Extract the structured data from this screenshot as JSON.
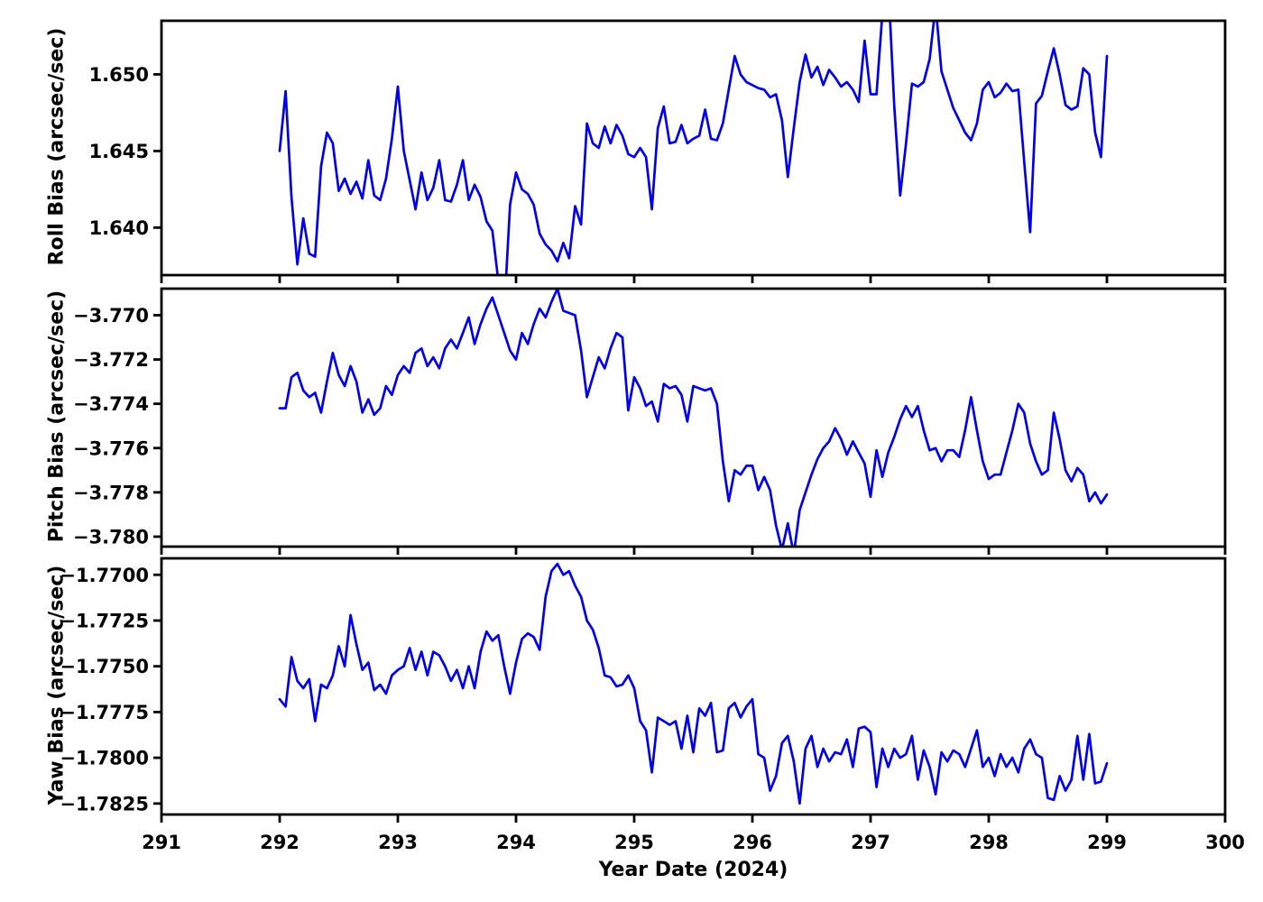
{
  "figure": {
    "background": "#ffffff",
    "axis_color": "#000000",
    "line_color": "#0000ee"
  },
  "xaxis": {
    "label": "Year Date (2024)",
    "xlim": [
      291,
      300
    ],
    "ticks": [
      291,
      292,
      293,
      294,
      295,
      296,
      297,
      298,
      299,
      300
    ],
    "tick_labels": [
      "291",
      "292",
      "293",
      "294",
      "295",
      "296",
      "297",
      "298",
      "299",
      "300"
    ]
  },
  "panels": [
    {
      "name": "roll",
      "ylabel": "Roll Bias (arcsec/sec)",
      "ylim": [
        1.6369,
        1.6535
      ],
      "ytick_values": [
        1.64,
        1.645,
        1.65
      ],
      "ytick_labels": [
        "1.640",
        "1.645",
        "1.650"
      ]
    },
    {
      "name": "pitch",
      "ylabel": "Pitch Bias (arcsec/sec)",
      "ylim": [
        -3.78045,
        -3.7688
      ],
      "ytick_values": [
        -3.78,
        -3.778,
        -3.776,
        -3.774,
        -3.772,
        -3.77
      ],
      "ytick_labels": [
        "−3.780",
        "−3.778",
        "−3.776",
        "−3.774",
        "−3.772",
        "−3.770"
      ]
    },
    {
      "name": "yaw",
      "ylabel": "Yaw Bias (arcsec/sec)",
      "ylim": [
        -1.7831,
        -1.7691
      ],
      "ytick_values": [
        -1.7825,
        -1.78,
        -1.7775,
        -1.775,
        -1.7725,
        -1.77
      ],
      "ytick_labels": [
        "−1.7825",
        "−1.7800",
        "−1.7775",
        "−1.7750",
        "−1.7725",
        "−1.7700"
      ]
    }
  ],
  "chart_data": {
    "type": "line",
    "xlabel": "Year Date (2024)",
    "legend": "none",
    "grid": false,
    "line_color": "#0000ee",
    "x": [
      292.0,
      292.05,
      292.1,
      292.15,
      292.2,
      292.25,
      292.3,
      292.35,
      292.4,
      292.45,
      292.5,
      292.55,
      292.6,
      292.65,
      292.7,
      292.75,
      292.8,
      292.85,
      292.9,
      292.95,
      293.0,
      293.05,
      293.1,
      293.15,
      293.2,
      293.25,
      293.3,
      293.35,
      293.4,
      293.45,
      293.5,
      293.55,
      293.6,
      293.65,
      293.7,
      293.75,
      293.8,
      293.85,
      293.9,
      293.95,
      294.0,
      294.05,
      294.1,
      294.15,
      294.2,
      294.25,
      294.3,
      294.35,
      294.4,
      294.45,
      294.5,
      294.55,
      294.6,
      294.65,
      294.7,
      294.75,
      294.8,
      294.85,
      294.9,
      294.95,
      295.0,
      295.05,
      295.1,
      295.15,
      295.2,
      295.25,
      295.3,
      295.35,
      295.4,
      295.45,
      295.5,
      295.55,
      295.6,
      295.65,
      295.7,
      295.75,
      295.8,
      295.85,
      295.9,
      295.95,
      296.0,
      296.05,
      296.1,
      296.15,
      296.2,
      296.25,
      296.3,
      296.35,
      296.4,
      296.45,
      296.5,
      296.55,
      296.6,
      296.65,
      296.7,
      296.75,
      296.8,
      296.85,
      296.9,
      296.95,
      297.0,
      297.05,
      297.1,
      297.15,
      297.2,
      297.25,
      297.3,
      297.35,
      297.4,
      297.45,
      297.5,
      297.55,
      297.6,
      297.65,
      297.7,
      297.75,
      297.8,
      297.85,
      297.9,
      297.95,
      298.0,
      298.05,
      298.1,
      298.15,
      298.2,
      298.25,
      298.3,
      298.35,
      298.4,
      298.45,
      298.5,
      298.55,
      298.6,
      298.65,
      298.7,
      298.75,
      298.8,
      298.85,
      298.9,
      298.95,
      299.0
    ],
    "series": [
      {
        "name": "Roll Bias (arcsec/sec)",
        "values": [
          1.645,
          1.6489,
          1.642,
          1.6376,
          1.6406,
          1.6383,
          1.6381,
          1.644,
          1.6462,
          1.6455,
          1.6424,
          1.6432,
          1.6422,
          1.643,
          1.6419,
          1.6444,
          1.6421,
          1.6418,
          1.6432,
          1.6458,
          1.6492,
          1.645,
          1.6431,
          1.6412,
          1.6436,
          1.6418,
          1.6426,
          1.6444,
          1.6418,
          1.6417,
          1.6428,
          1.6444,
          1.6418,
          1.6428,
          1.642,
          1.6404,
          1.6398,
          1.6365,
          1.6345,
          1.6415,
          1.6436,
          1.6425,
          1.6422,
          1.6415,
          1.6396,
          1.6389,
          1.6385,
          1.6378,
          1.639,
          1.638,
          1.6414,
          1.6402,
          1.6468,
          1.6455,
          1.6452,
          1.6466,
          1.6455,
          1.6467,
          1.646,
          1.6448,
          1.6446,
          1.6452,
          1.6446,
          1.6412,
          1.6465,
          1.6479,
          1.6455,
          1.6456,
          1.6467,
          1.6455,
          1.6458,
          1.646,
          1.6477,
          1.6458,
          1.6457,
          1.6468,
          1.649,
          1.6512,
          1.65,
          1.6495,
          1.6493,
          1.6491,
          1.649,
          1.6485,
          1.6487,
          1.647,
          1.6433,
          1.6465,
          1.6495,
          1.6513,
          1.6498,
          1.6505,
          1.6493,
          1.6503,
          1.6498,
          1.6492,
          1.6495,
          1.649,
          1.6482,
          1.6522,
          1.6487,
          1.6487,
          1.654,
          1.656,
          1.648,
          1.6421,
          1.6455,
          1.6494,
          1.6492,
          1.6495,
          1.651,
          1.6545,
          1.6502,
          1.649,
          1.6478,
          1.647,
          1.6462,
          1.6457,
          1.6468,
          1.649,
          1.6495,
          1.6485,
          1.6488,
          1.6494,
          1.6489,
          1.649,
          1.6443,
          1.6397,
          1.6481,
          1.6486,
          1.6502,
          1.6517,
          1.65,
          1.648,
          1.6477,
          1.6479,
          1.6504,
          1.65,
          1.6462,
          1.6446,
          1.6512
        ]
      },
      {
        "name": "Pitch Bias (arcsec/sec)",
        "values": [
          -3.7742,
          -3.7742,
          -3.7728,
          -3.7726,
          -3.7734,
          -3.7737,
          -3.7735,
          -3.7744,
          -3.773,
          -3.7717,
          -3.7727,
          -3.7732,
          -3.7723,
          -3.773,
          -3.7744,
          -3.7738,
          -3.7745,
          -3.7742,
          -3.7732,
          -3.7736,
          -3.7727,
          -3.7723,
          -3.7726,
          -3.7717,
          -3.7715,
          -3.7723,
          -3.7719,
          -3.7724,
          -3.7715,
          -3.7711,
          -3.7715,
          -3.7708,
          -3.7701,
          -3.7713,
          -3.7704,
          -3.7697,
          -3.7692,
          -3.77,
          -3.7708,
          -3.7716,
          -3.772,
          -3.7708,
          -3.7713,
          -3.7704,
          -3.7697,
          -3.7701,
          -3.7694,
          -3.7688,
          -3.7698,
          -3.7699,
          -3.77,
          -3.7716,
          -3.7737,
          -3.7728,
          -3.7719,
          -3.7724,
          -3.7715,
          -3.7708,
          -3.771,
          -3.7743,
          -3.7728,
          -3.7733,
          -3.7741,
          -3.7739,
          -3.7748,
          -3.7731,
          -3.7733,
          -3.7732,
          -3.7736,
          -3.7748,
          -3.7732,
          -3.7733,
          -3.7734,
          -3.7733,
          -3.774,
          -3.7766,
          -3.7784,
          -3.777,
          -3.7772,
          -3.7768,
          -3.7768,
          -3.7779,
          -3.7773,
          -3.7779,
          -3.7795,
          -3.7806,
          -3.7794,
          -3.7808,
          -3.7788,
          -3.778,
          -3.7772,
          -3.7765,
          -3.776,
          -3.7757,
          -3.7751,
          -3.7756,
          -3.7763,
          -3.7757,
          -3.7762,
          -3.7767,
          -3.7782,
          -3.7761,
          -3.7773,
          -3.7762,
          -3.7755,
          -3.7747,
          -3.7741,
          -3.7746,
          -3.7741,
          -3.7752,
          -3.7761,
          -3.776,
          -3.7766,
          -3.7761,
          -3.7761,
          -3.7764,
          -3.7752,
          -3.7737,
          -3.7752,
          -3.7766,
          -3.7774,
          -3.7772,
          -3.7772,
          -3.7762,
          -3.7752,
          -3.774,
          -3.7744,
          -3.7758,
          -3.7766,
          -3.7772,
          -3.777,
          -3.7744,
          -3.7756,
          -3.777,
          -3.7775,
          -3.7769,
          -3.7772,
          -3.7784,
          -3.778,
          -3.7785,
          -3.7781
        ]
      },
      {
        "name": "Yaw Bias (arcsec/sec)",
        "values": [
          -1.7768,
          -1.7772,
          -1.7745,
          -1.7758,
          -1.7762,
          -1.7757,
          -1.778,
          -1.776,
          -1.7762,
          -1.7755,
          -1.7739,
          -1.775,
          -1.7722,
          -1.7738,
          -1.7752,
          -1.7748,
          -1.7763,
          -1.776,
          -1.7765,
          -1.7755,
          -1.7752,
          -1.775,
          -1.774,
          -1.7752,
          -1.7742,
          -1.7755,
          -1.7742,
          -1.7744,
          -1.775,
          -1.7758,
          -1.7752,
          -1.7762,
          -1.775,
          -1.7762,
          -1.7742,
          -1.7731,
          -1.7736,
          -1.7733,
          -1.775,
          -1.7765,
          -1.7748,
          -1.7735,
          -1.7732,
          -1.7734,
          -1.7741,
          -1.7712,
          -1.7698,
          -1.7694,
          -1.77,
          -1.7698,
          -1.7706,
          -1.7712,
          -1.7725,
          -1.773,
          -1.774,
          -1.7755,
          -1.7756,
          -1.7761,
          -1.776,
          -1.7755,
          -1.7762,
          -1.778,
          -1.7785,
          -1.7808,
          -1.7778,
          -1.778,
          -1.7782,
          -1.778,
          -1.7795,
          -1.7777,
          -1.7797,
          -1.7773,
          -1.7777,
          -1.777,
          -1.7797,
          -1.7796,
          -1.7773,
          -1.777,
          -1.7778,
          -1.7772,
          -1.7768,
          -1.7798,
          -1.78,
          -1.7818,
          -1.781,
          -1.7792,
          -1.7788,
          -1.7802,
          -1.7825,
          -1.7795,
          -1.7788,
          -1.7805,
          -1.7795,
          -1.7802,
          -1.7797,
          -1.7798,
          -1.779,
          -1.7805,
          -1.7784,
          -1.7783,
          -1.7786,
          -1.7816,
          -1.7795,
          -1.7805,
          -1.7795,
          -1.78,
          -1.7798,
          -1.7788,
          -1.7812,
          -1.7796,
          -1.7805,
          -1.782,
          -1.7797,
          -1.7802,
          -1.7796,
          -1.7798,
          -1.7805,
          -1.7795,
          -1.7785,
          -1.7805,
          -1.78,
          -1.781,
          -1.7798,
          -1.7805,
          -1.78,
          -1.7808,
          -1.7795,
          -1.779,
          -1.7798,
          -1.78,
          -1.7822,
          -1.7823,
          -1.781,
          -1.7818,
          -1.7812,
          -1.7788,
          -1.7812,
          -1.7787,
          -1.7814,
          -1.7813,
          -1.7803
        ]
      }
    ]
  }
}
